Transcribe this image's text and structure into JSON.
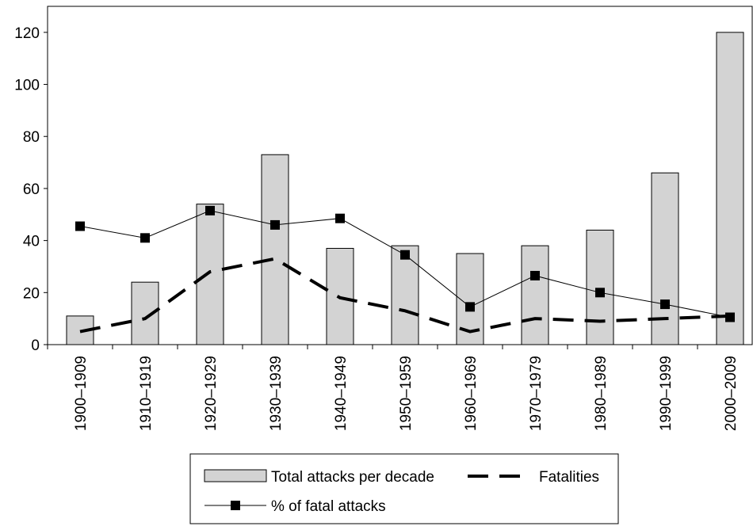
{
  "chart_data": {
    "type": "bar",
    "categories": [
      "1900–1909",
      "1910–1919",
      "1920–1929",
      "1930–1939",
      "1940–1949",
      "1950–1959",
      "1960–1969",
      "1970–1979",
      "1980–1989",
      "1990–1999",
      "2000–2009"
    ],
    "series": [
      {
        "name": "Total attacks per decade",
        "kind": "bar",
        "values": [
          11,
          24,
          54,
          73,
          37,
          38,
          35,
          38,
          44,
          66,
          120
        ]
      },
      {
        "name": "Fatalities",
        "kind": "dashed-line",
        "values": [
          5,
          10,
          28,
          33,
          18,
          13,
          5,
          10,
          9,
          10,
          11
        ]
      },
      {
        "name": "% of fatal attacks",
        "kind": "line-marker",
        "values": [
          45.5,
          41,
          51.5,
          46,
          48.5,
          34.5,
          14.5,
          26.5,
          20,
          15.5,
          10.5
        ]
      }
    ],
    "ylim": [
      0,
      130
    ],
    "yticks": [
      0,
      20,
      40,
      60,
      80,
      100,
      120
    ],
    "title": "",
    "xlabel": "",
    "ylabel": "",
    "legend_position": "bottom-center",
    "colors": {
      "bar_fill": "#d3d3d3",
      "bar_stroke": "#000000",
      "line": "#000000",
      "axis": "#000000"
    }
  }
}
